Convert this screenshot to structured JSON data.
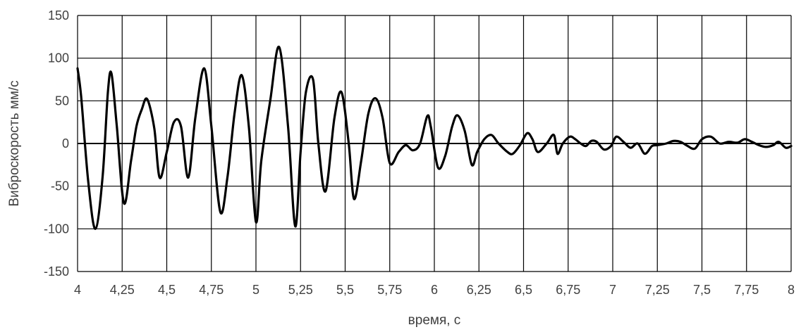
{
  "chart_data": {
    "type": "line",
    "xlabel": "время, с",
    "ylabel": "Виброскорость мм/с",
    "xlim": [
      4,
      8
    ],
    "ylim": [
      -150,
      150
    ],
    "x_ticks": [
      4,
      4.25,
      4.5,
      4.75,
      5,
      5.25,
      5.5,
      5.75,
      6,
      6.25,
      6.5,
      6.75,
      7,
      7.25,
      7.5,
      7.75,
      8
    ],
    "x_tick_labels": [
      "4",
      "4,25",
      "4,5",
      "4,75",
      "5",
      "5,25",
      "5,5",
      "5,75",
      "6",
      "6,25",
      "6,5",
      "6,75",
      "7",
      "7,25",
      "7,5",
      "7,75",
      "8"
    ],
    "y_ticks": [
      150,
      100,
      50,
      0,
      -50,
      -100,
      -150
    ],
    "y_tick_labels": [
      "150",
      "100",
      "50",
      "0",
      "-50",
      "-100",
      "-150"
    ],
    "grid": true,
    "legend": "none",
    "line_color": "#000000",
    "series": [
      {
        "x": [
          4.0,
          4.02,
          4.06,
          4.1,
          4.14,
          4.17,
          4.19,
          4.22,
          4.26,
          4.3,
          4.33,
          4.36,
          4.39,
          4.43,
          4.46,
          4.5,
          4.54,
          4.58,
          4.62,
          4.66,
          4.71,
          4.75,
          4.8,
          4.84,
          4.88,
          4.92,
          4.96,
          5.0,
          5.03,
          5.08,
          5.13,
          5.18,
          5.22,
          5.25,
          5.28,
          5.32,
          5.35,
          5.39,
          5.44,
          5.48,
          5.52,
          5.55,
          5.59,
          5.63,
          5.67,
          5.71,
          5.75,
          5.8,
          5.84,
          5.88,
          5.92,
          5.96,
          5.98,
          6.02,
          6.06,
          6.1,
          6.13,
          6.17,
          6.21,
          6.24,
          6.28,
          6.32,
          6.36,
          6.41,
          6.44,
          6.48,
          6.52,
          6.55,
          6.58,
          6.63,
          6.67,
          6.69,
          6.72,
          6.76,
          6.79,
          6.82,
          6.85,
          6.88,
          6.91,
          6.95,
          6.99,
          7.02,
          7.06,
          7.1,
          7.14,
          7.18,
          7.22,
          7.25,
          7.3,
          7.34,
          7.38,
          7.42,
          7.46,
          7.5,
          7.55,
          7.6,
          7.65,
          7.7,
          7.74,
          7.78,
          7.82,
          7.86,
          7.9,
          7.93,
          7.97,
          8.0
        ],
        "y": [
          88,
          55,
          -45,
          -100,
          -40,
          60,
          82,
          20,
          -70,
          -20,
          20,
          40,
          52,
          18,
          -40,
          -10,
          25,
          20,
          -40,
          30,
          88,
          20,
          -80,
          -40,
          35,
          80,
          20,
          -92,
          -20,
          50,
          113,
          20,
          -97,
          -10,
          60,
          75,
          0,
          -56,
          30,
          60,
          0,
          -65,
          -20,
          35,
          53,
          30,
          -23,
          -10,
          -2,
          -8,
          0,
          32,
          20,
          -28,
          -15,
          20,
          33,
          15,
          -25,
          -10,
          5,
          10,
          0,
          -10,
          -12,
          -2,
          12,
          5,
          -10,
          0,
          10,
          -12,
          0,
          8,
          5,
          0,
          -3,
          3,
          2,
          -7,
          -3,
          8,
          2,
          -5,
          0,
          -12,
          -3,
          -2,
          0,
          3,
          2,
          -3,
          -6,
          5,
          8,
          0,
          2,
          1,
          5,
          2,
          -2,
          -4,
          -2,
          2,
          -5,
          -3
        ]
      }
    ]
  }
}
